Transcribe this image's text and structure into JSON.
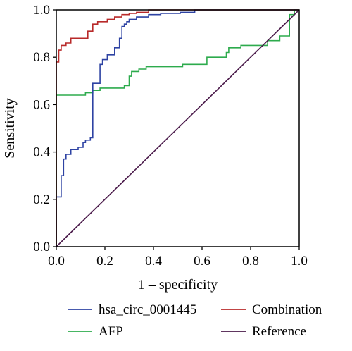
{
  "chart_data": {
    "type": "line",
    "title": "",
    "xlabel": "1 – specificity",
    "ylabel": "Sensitivity",
    "xlim": [
      0,
      1
    ],
    "ylim": [
      0,
      1
    ],
    "x_ticks": [
      "0.0",
      "0.2",
      "0.4",
      "0.6",
      "0.8",
      "1.0"
    ],
    "y_ticks": [
      "0.0",
      "0.2",
      "0.4",
      "0.6",
      "0.8",
      "1.0"
    ],
    "grid": false,
    "legend_position": "bottom",
    "series": [
      {
        "name": "hsa_circ_0001445",
        "color": "#2e43a3",
        "x": [
          0.0,
          0.0,
          0.02,
          0.02,
          0.03,
          0.03,
          0.04,
          0.04,
          0.06,
          0.06,
          0.09,
          0.09,
          0.11,
          0.11,
          0.12,
          0.12,
          0.14,
          0.14,
          0.15,
          0.15,
          0.18,
          0.18,
          0.19,
          0.19,
          0.21,
          0.21,
          0.24,
          0.24,
          0.26,
          0.26,
          0.27,
          0.27,
          0.28,
          0.28,
          0.29,
          0.29,
          0.3,
          0.3,
          0.33,
          0.33,
          0.38,
          0.38,
          0.43,
          0.43,
          0.51,
          0.51,
          0.57,
          0.57,
          0.62,
          1.0
        ],
        "y": [
          0.0,
          0.21,
          0.21,
          0.3,
          0.3,
          0.37,
          0.37,
          0.39,
          0.39,
          0.41,
          0.41,
          0.42,
          0.42,
          0.44,
          0.44,
          0.45,
          0.45,
          0.46,
          0.46,
          0.69,
          0.69,
          0.77,
          0.77,
          0.79,
          0.79,
          0.81,
          0.81,
          0.84,
          0.84,
          0.88,
          0.88,
          0.93,
          0.93,
          0.94,
          0.94,
          0.95,
          0.95,
          0.96,
          0.96,
          0.97,
          0.97,
          0.98,
          0.98,
          0.985,
          0.985,
          0.99,
          0.99,
          1.0,
          1.0,
          1.0
        ]
      },
      {
        "name": "Combination",
        "color": "#b82a2a",
        "x": [
          0.0,
          0.0,
          0.01,
          0.01,
          0.02,
          0.02,
          0.04,
          0.04,
          0.06,
          0.06,
          0.13,
          0.13,
          0.15,
          0.15,
          0.17,
          0.17,
          0.21,
          0.21,
          0.24,
          0.24,
          0.27,
          0.27,
          0.3,
          0.3,
          0.33,
          0.33,
          0.38,
          0.38,
          0.46,
          1.0
        ],
        "y": [
          0.0,
          0.78,
          0.78,
          0.83,
          0.83,
          0.85,
          0.85,
          0.86,
          0.86,
          0.88,
          0.88,
          0.91,
          0.91,
          0.94,
          0.94,
          0.95,
          0.95,
          0.96,
          0.96,
          0.97,
          0.97,
          0.98,
          0.98,
          0.985,
          0.985,
          0.99,
          0.99,
          1.0,
          1.0,
          1.0
        ]
      },
      {
        "name": "AFP",
        "color": "#2dab4d",
        "x": [
          0.0,
          0.0,
          0.12,
          0.12,
          0.15,
          0.15,
          0.18,
          0.18,
          0.28,
          0.28,
          0.3,
          0.3,
          0.31,
          0.31,
          0.34,
          0.34,
          0.37,
          0.37,
          0.43,
          0.43,
          0.52,
          0.52,
          0.62,
          0.62,
          0.7,
          0.7,
          0.71,
          0.71,
          0.76,
          0.76,
          0.87,
          0.87,
          0.92,
          0.92,
          0.93,
          0.93,
          0.96,
          0.96,
          0.98,
          0.98,
          1.0
        ],
        "y": [
          0.0,
          0.64,
          0.64,
          0.65,
          0.65,
          0.66,
          0.66,
          0.67,
          0.67,
          0.68,
          0.68,
          0.72,
          0.72,
          0.74,
          0.74,
          0.75,
          0.75,
          0.76,
          0.76,
          0.76,
          0.76,
          0.77,
          0.77,
          0.8,
          0.8,
          0.82,
          0.82,
          0.84,
          0.84,
          0.85,
          0.85,
          0.87,
          0.87,
          0.89,
          0.89,
          0.89,
          0.89,
          0.98,
          0.98,
          1.0,
          1.0
        ]
      },
      {
        "name": "Reference",
        "color": "#4a1a4a",
        "x": [
          0,
          1
        ],
        "y": [
          0,
          1
        ]
      }
    ]
  }
}
